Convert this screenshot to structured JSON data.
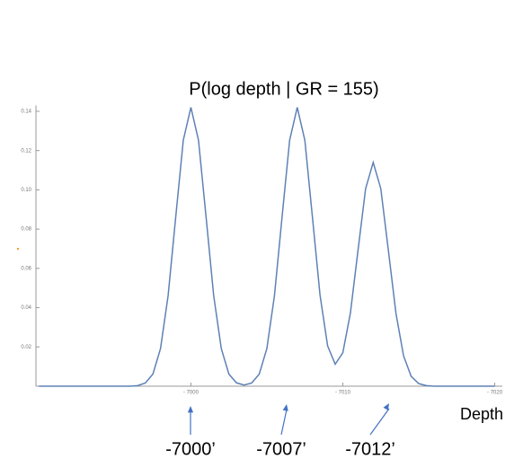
{
  "chart_data": {
    "type": "line",
    "title": "P(log depth | GR = 155)",
    "x_label": "Depth",
    "annotations": [
      "-7000’",
      "-7007’",
      "-7012’"
    ],
    "x": [
      -6990,
      -6990.5,
      -6991,
      -6991.5,
      -6992,
      -6992.5,
      -6993,
      -6993.5,
      -6994,
      -6994.5,
      -6995,
      -6995.5,
      -6996,
      -6996.5,
      -6997,
      -6997.5,
      -6998,
      -6998.5,
      -6999,
      -6999.5,
      -7000,
      -7000.5,
      -7001,
      -7001.5,
      -7002,
      -7002.5,
      -7003,
      -7003.5,
      -7004,
      -7004.5,
      -7005,
      -7005.5,
      -7006,
      -7006.5,
      -7007,
      -7007.5,
      -7008,
      -7008.5,
      -7009,
      -7009.5,
      -7010,
      -7010.5,
      -7011,
      -7011.5,
      -7012,
      -7012.5,
      -7013,
      -7013.5,
      -7014,
      -7014.5,
      -7015,
      -7015.5,
      -7016,
      -7016.5,
      -7017,
      -7017.5,
      -7018,
      -7018.5,
      -7019,
      -7019.5,
      -7020
    ],
    "values": [
      0,
      0,
      0,
      0,
      0,
      0,
      0,
      0,
      0,
      0,
      0,
      0,
      0,
      0.0003,
      0.0016,
      0.0062,
      0.0192,
      0.0461,
      0.0861,
      0.1253,
      0.142,
      0.1253,
      0.0861,
      0.0461,
      0.0192,
      0.0062,
      0.0017,
      0.0006,
      0.0016,
      0.0062,
      0.0192,
      0.0461,
      0.0861,
      0.1253,
      0.142,
      0.1253,
      0.0861,
      0.0464,
      0.0205,
      0.0112,
      0.017,
      0.0373,
      0.0692,
      0.1006,
      0.114,
      0.1006,
      0.0691,
      0.037,
      0.0154,
      0.005,
      0.0013,
      0.0003,
      0,
      0,
      0,
      0,
      0,
      0,
      0,
      0,
      0
    ],
    "color": "#5e81b5",
    "xlim": [
      -6989.8,
      -7020.5
    ],
    "xticks": [
      {
        "value": -7000,
        "label": "- 7000"
      },
      {
        "value": -7010,
        "label": "- 7010"
      },
      {
        "value": -7020,
        "label": "- 7020"
      }
    ],
    "ylim": [
      0,
      0.143
    ],
    "yticks": [
      0.02,
      0.04,
      0.06,
      0.08,
      {
        "value": 0.1,
        "label": "0.10"
      },
      0.12,
      0.14
    ],
    "grid": false
  }
}
